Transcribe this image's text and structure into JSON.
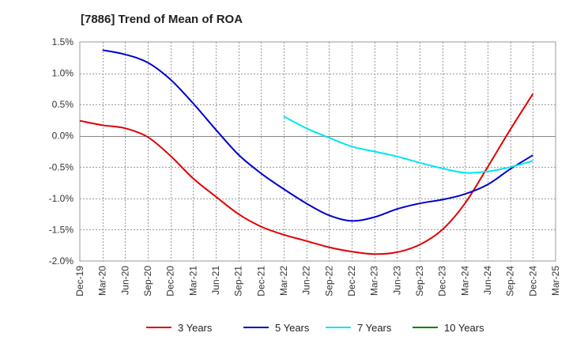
{
  "chart_data": {
    "type": "line",
    "title": "[7886]  Trend of Mean of ROA",
    "xlabel": "",
    "ylabel": "",
    "x": [
      "Dec-19",
      "Mar-20",
      "Jun-20",
      "Sep-20",
      "Dec-20",
      "Mar-21",
      "Jun-21",
      "Sep-21",
      "Dec-21",
      "Mar-22",
      "Jun-22",
      "Sep-22",
      "Dec-22",
      "Mar-23",
      "Jun-23",
      "Sep-23",
      "Dec-23",
      "Mar-24",
      "Jun-24",
      "Sep-24",
      "Dec-24",
      "Mar-25"
    ],
    "y_ticks": [
      "1.5%",
      "1.0%",
      "0.5%",
      "0.0%",
      "-0.5%",
      "-1.0%",
      "-1.5%",
      "-2.0%"
    ],
    "ylim": [
      -2.0,
      1.5
    ],
    "grid": true,
    "legend_position": "bottom",
    "series": [
      {
        "name": "3 Years",
        "color": "#e00000",
        "values": [
          0.24,
          0.17,
          0.12,
          -0.02,
          -0.32,
          -0.68,
          -0.97,
          -1.25,
          -1.45,
          -1.58,
          -1.68,
          -1.78,
          -1.85,
          -1.89,
          -1.86,
          -1.74,
          -1.5,
          -1.08,
          -0.5,
          0.1,
          0.67,
          null
        ]
      },
      {
        "name": "5 Years",
        "color": "#0000cc",
        "values": [
          null,
          1.37,
          1.3,
          1.17,
          0.9,
          0.52,
          0.1,
          -0.3,
          -0.6,
          -0.85,
          -1.08,
          -1.27,
          -1.36,
          -1.3,
          -1.17,
          -1.08,
          -1.02,
          -0.93,
          -0.78,
          -0.53,
          -0.31,
          null
        ]
      },
      {
        "name": "7 Years",
        "color": "#00e5ee",
        "values": [
          null,
          null,
          null,
          null,
          null,
          null,
          null,
          null,
          null,
          0.31,
          0.12,
          -0.03,
          -0.17,
          -0.25,
          -0.33,
          -0.43,
          -0.52,
          -0.59,
          -0.57,
          -0.5,
          -0.4,
          null
        ]
      },
      {
        "name": "10 Years",
        "color": "#008000",
        "values": [
          null,
          null,
          null,
          null,
          null,
          null,
          null,
          null,
          null,
          null,
          null,
          null,
          null,
          null,
          null,
          null,
          null,
          null,
          null,
          null,
          null,
          null
        ]
      }
    ]
  }
}
